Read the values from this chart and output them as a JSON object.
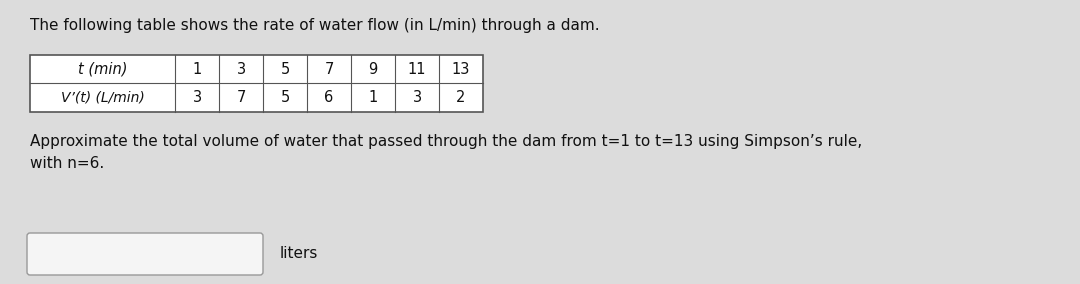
{
  "title": "The following table shows the rate of water flow (in L/min) through a dam.",
  "t_label": "t (min)",
  "v_label": "V’(t) (L/min)",
  "t_values": [
    "1",
    "3",
    "5",
    "7",
    "9",
    "11",
    "13"
  ],
  "v_values": [
    "3",
    "7",
    "5",
    "6",
    "1",
    "3",
    "2"
  ],
  "question_text": "Approximate the total volume of water that passed through the dam from t=1 to t=13 using Simpson’s rule,\nwith n=6.",
  "units_label": "liters",
  "background_color": "#dcdcdc",
  "table_bg": "#ffffff",
  "border_color": "#555555",
  "text_color": "#111111",
  "input_box_color": "#f5f5f5",
  "input_box_border": "#999999",
  "title_fontsize": 11.0,
  "table_fontsize": 10.5,
  "question_fontsize": 11.0,
  "units_fontsize": 11.0
}
